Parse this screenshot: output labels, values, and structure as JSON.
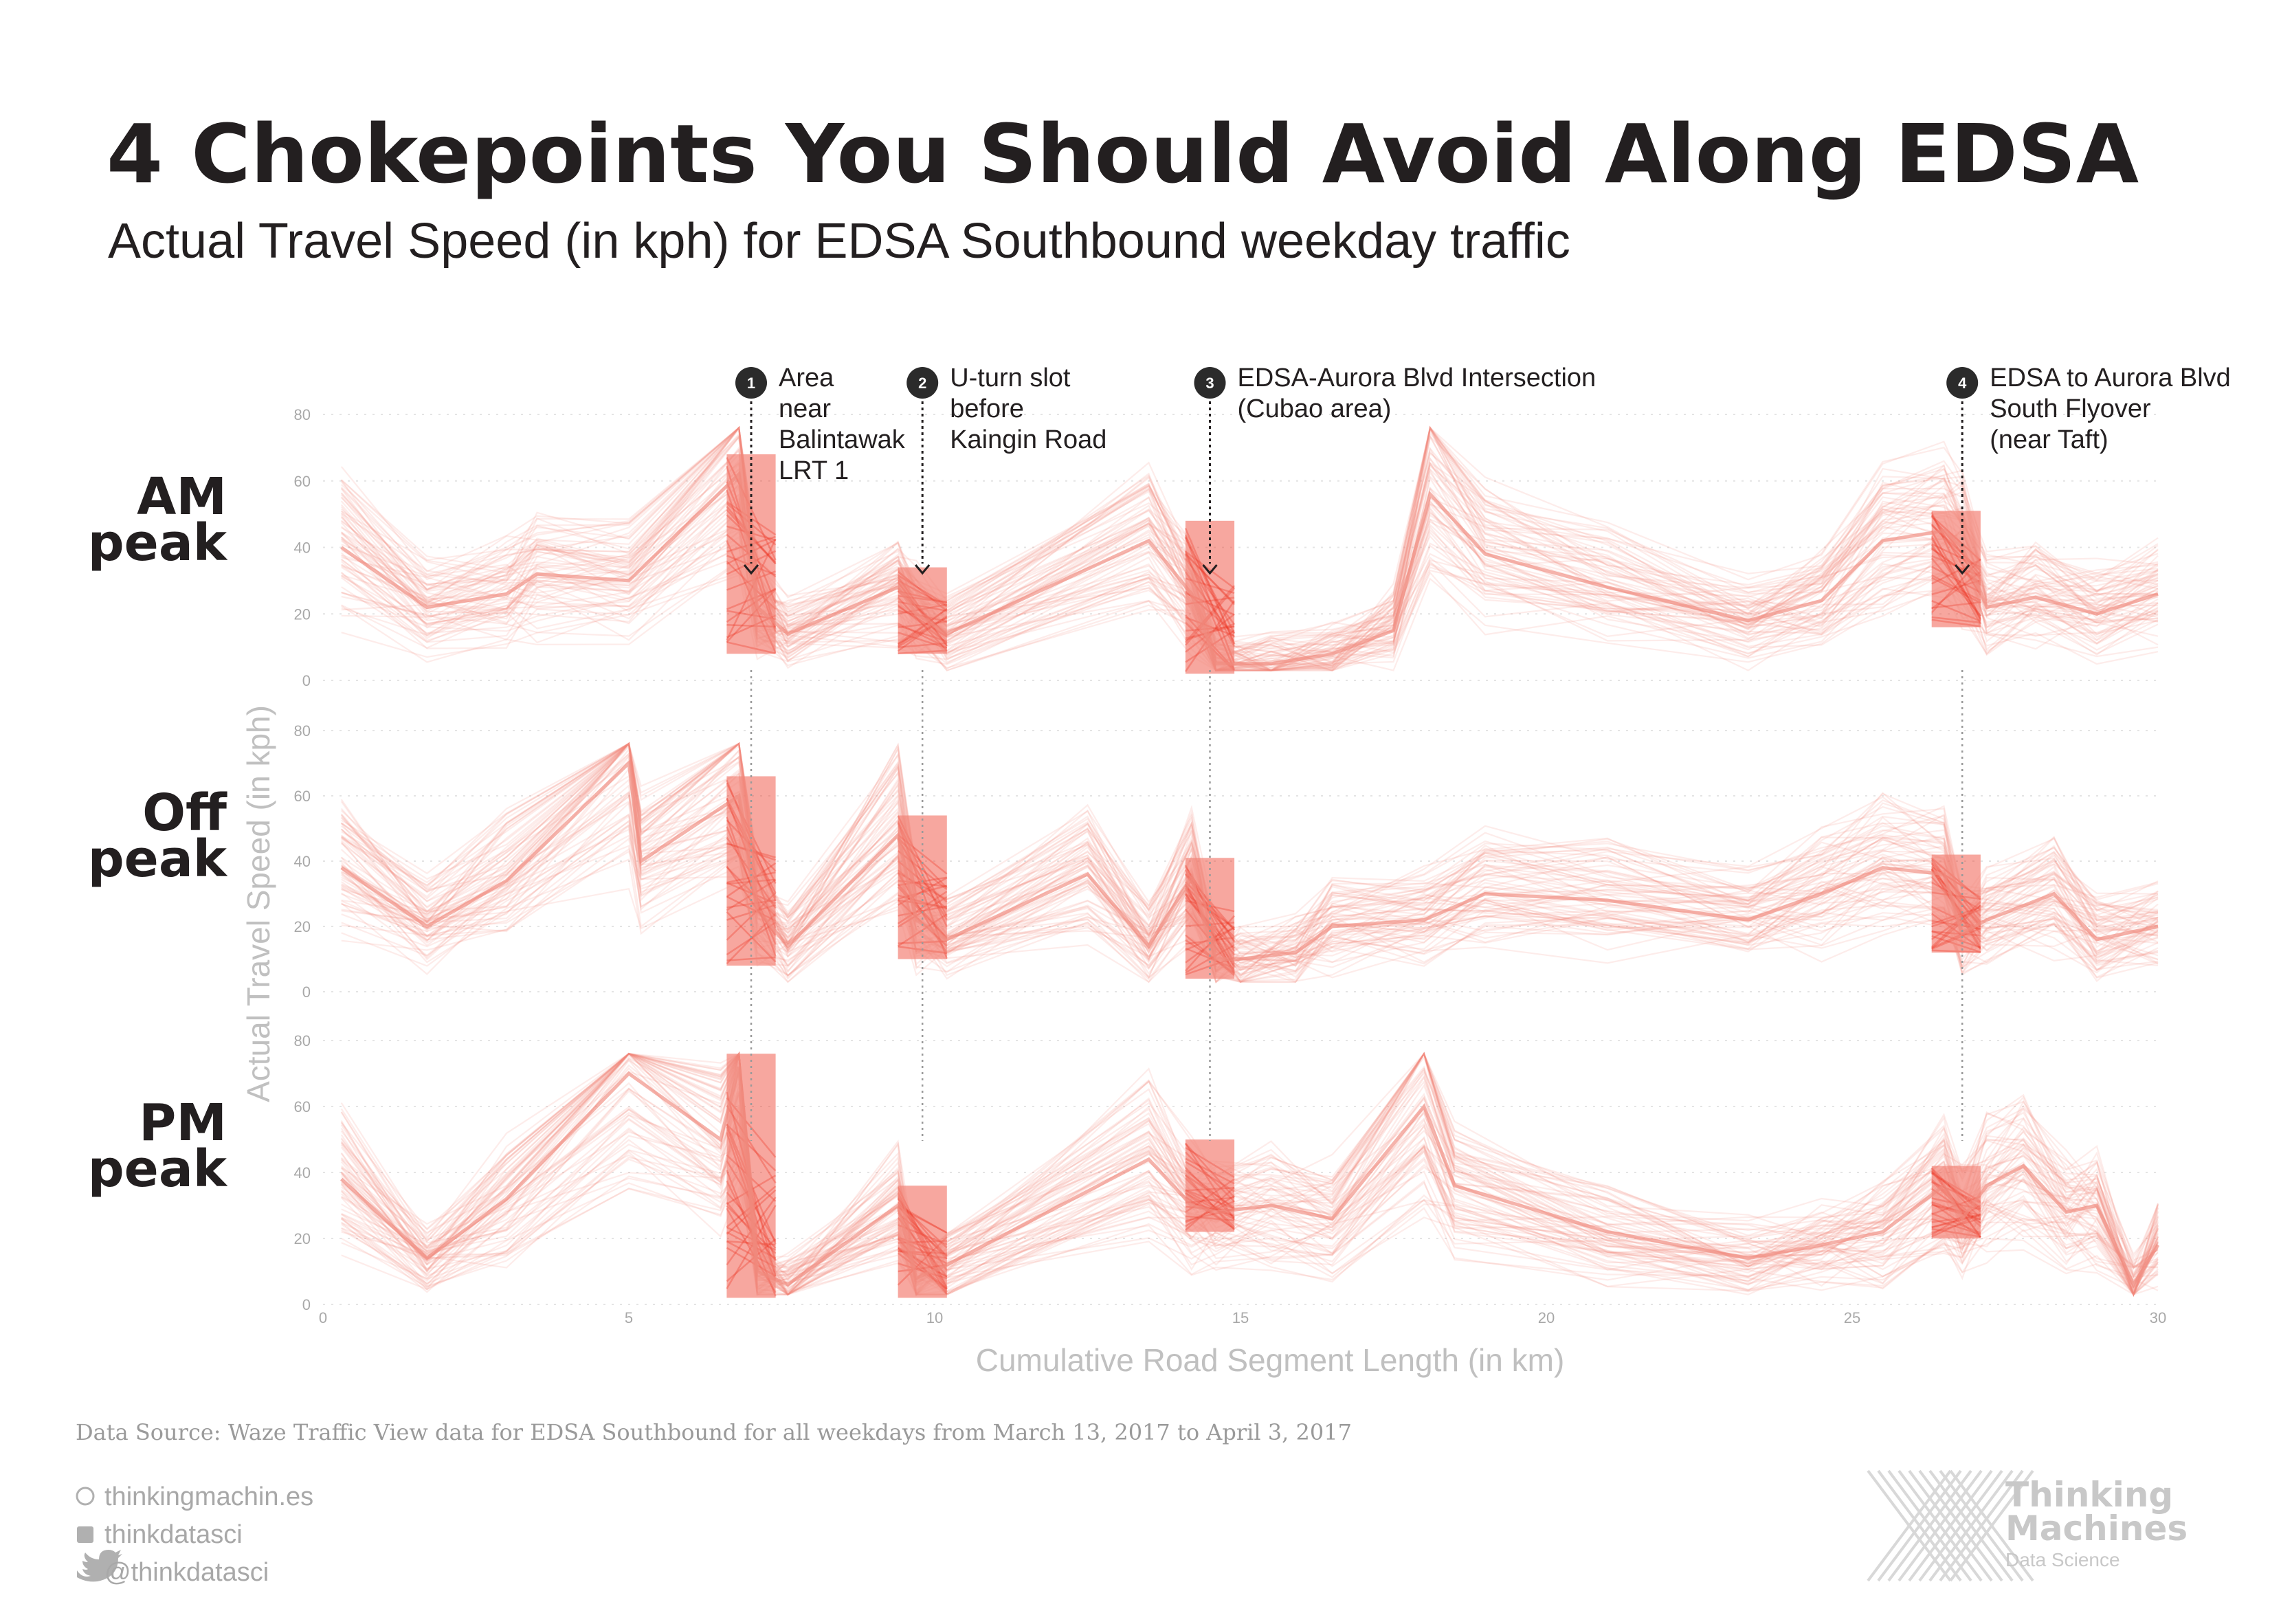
{
  "title": "4 Chokepoints You Should Avoid Along EDSA",
  "subtitle": "Actual Travel Speed (in kph) for EDSA Southbound weekday traffic",
  "footer": {
    "source": "Data Source: Waze Traffic View data for EDSA Southbound for all weekdays from March 13, 2017 to April 3, 2017",
    "website": "thinkingmachin.es",
    "facebook": "thinkdatasci",
    "twitter": "@thinkdatasci",
    "brand_line1": "Thinking",
    "brand_line2": "Machines",
    "brand_line3": "Data Science"
  },
  "colors": {
    "line": "#f08a7e",
    "highlight": "#ee3b2b",
    "text": "#231f20",
    "axis_text": "#a8a8a8"
  },
  "chart_data": {
    "type": "line",
    "xlabel": "Cumulative Road Segment Length (in km)",
    "ylabel": "Actual Travel Speed (in kph)",
    "xlim": [
      0,
      30
    ],
    "ylim": [
      0,
      80
    ],
    "x_ticks": [
      "0",
      "5",
      "10",
      "15",
      "20",
      "25",
      "30"
    ],
    "y_ticks": [
      "0",
      "20",
      "40",
      "60",
      "80"
    ],
    "grid": true,
    "panels": [
      {
        "label_line1": "AM",
        "label_line2": "peak",
        "x": [
          0.3,
          1.7,
          3.0,
          3.5,
          5.0,
          6.8,
          7.1,
          7.6,
          9.4,
          9.7,
          10.2,
          13.5,
          14.2,
          14.6,
          15.5,
          16.5,
          17.5,
          18.1,
          19.0,
          21.0,
          23.3,
          24.5,
          25.5,
          26.5,
          26.8,
          27.2,
          28.0,
          29.0,
          30.0
        ],
        "median": [
          40,
          22,
          26,
          32,
          30,
          62,
          22,
          14,
          28,
          20,
          14,
          42,
          26,
          5,
          5,
          8,
          15,
          56,
          38,
          28,
          18,
          24,
          42,
          45,
          40,
          22,
          25,
          20,
          26
        ]
      },
      {
        "label_line1": "Off",
        "label_line2": "peak",
        "x": [
          0.3,
          1.7,
          3.0,
          5.0,
          5.2,
          6.8,
          7.1,
          7.6,
          9.4,
          9.7,
          10.2,
          12.5,
          13.5,
          14.2,
          14.6,
          15.0,
          15.9,
          16.5,
          18.0,
          19.0,
          21.0,
          23.3,
          24.5,
          25.5,
          26.5,
          26.8,
          27.2,
          28.3,
          29.0,
          30.0
        ],
        "median": [
          38,
          20,
          34,
          70,
          40,
          60,
          25,
          14,
          48,
          22,
          16,
          36,
          14,
          35,
          10,
          10,
          12,
          20,
          22,
          30,
          28,
          22,
          30,
          38,
          36,
          18,
          22,
          30,
          16,
          20
        ]
      },
      {
        "label_line1": "PM",
        "label_line2": "peak",
        "x": [
          0.3,
          1.7,
          3.0,
          5.0,
          6.5,
          6.8,
          7.1,
          7.6,
          9.4,
          9.7,
          10.2,
          13.5,
          14.2,
          14.6,
          15.5,
          16.5,
          18.0,
          18.5,
          21.0,
          23.3,
          24.5,
          25.5,
          26.5,
          26.8,
          27.2,
          27.8,
          28.5,
          29.0,
          29.6,
          30.0
        ],
        "median": [
          38,
          14,
          32,
          70,
          50,
          72,
          10,
          6,
          30,
          8,
          12,
          44,
          30,
          28,
          30,
          26,
          60,
          36,
          22,
          14,
          18,
          22,
          36,
          26,
          36,
          42,
          28,
          30,
          6,
          18
        ]
      }
    ],
    "highlight_bands_km": [
      [
        6.6,
        7.4
      ],
      [
        9.4,
        10.2
      ],
      [
        14.1,
        14.9
      ],
      [
        26.3,
        27.1
      ]
    ],
    "annotations": [
      {
        "number": "1",
        "x_km": 7.0,
        "lines": [
          "Area",
          "near",
          "Balintawak",
          "LRT 1"
        ]
      },
      {
        "number": "2",
        "x_km": 9.8,
        "lines": [
          "U-turn slot",
          "before",
          "Kaingin Road"
        ]
      },
      {
        "number": "3",
        "x_km": 14.5,
        "lines": [
          "EDSA-Aurora Blvd Intersection",
          "(Cubao area)"
        ]
      },
      {
        "number": "4",
        "x_km": 26.8,
        "lines": [
          "EDSA to Aurora Blvd",
          "South Flyover",
          "(near Taft)"
        ]
      }
    ]
  }
}
